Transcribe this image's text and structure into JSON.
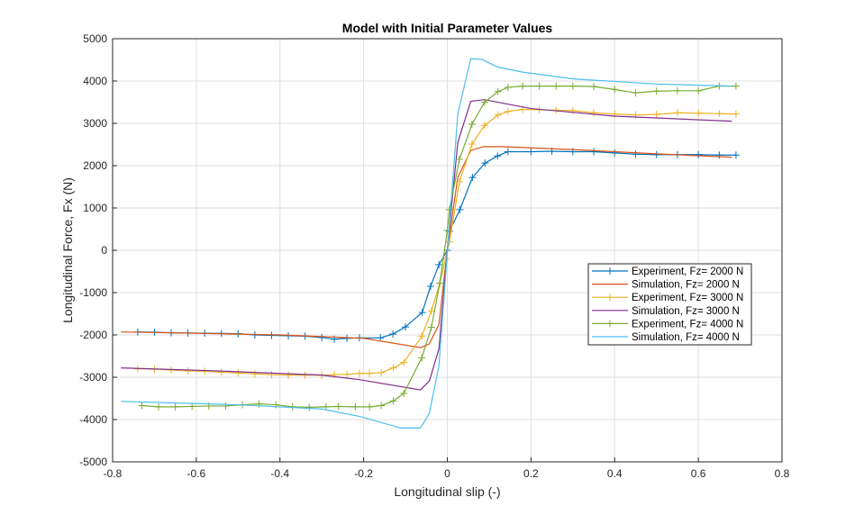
{
  "chart_data": {
    "type": "line",
    "title": "Model with Initial Parameter Values",
    "xlabel": "Longitudinal slip (-)",
    "ylabel": "Longitudinal Force, Fx (N)",
    "xlim": [
      -0.8,
      0.8
    ],
    "ylim": [
      -5000,
      5000
    ],
    "xticks": [
      -0.8,
      -0.6,
      -0.4,
      -0.2,
      0,
      0.2,
      0.4,
      0.6,
      0.8
    ],
    "xtick_labels": [
      "-0.8",
      "-0.6",
      "-0.4",
      "-0.2",
      "0",
      "0.2",
      "0.4",
      "0.6",
      "0.8"
    ],
    "yticks": [
      -5000,
      -4000,
      -3000,
      -2000,
      -1000,
      0,
      1000,
      2000,
      3000,
      4000,
      5000
    ],
    "ytick_labels": [
      "-5000",
      "-4000",
      "-3000",
      "-2000",
      "-1000",
      "0",
      "1000",
      "2000",
      "3000",
      "4000",
      "5000"
    ],
    "grid": true,
    "legend_position": "right-center",
    "series": [
      {
        "name": "Experiment, Fz= 2000 N",
        "color": "#0072BD",
        "marker": "+",
        "points": [
          [
            -0.74,
            -1930
          ],
          [
            -0.7,
            -1935
          ],
          [
            -0.66,
            -1950
          ],
          [
            -0.62,
            -1955
          ],
          [
            -0.58,
            -1960
          ],
          [
            -0.54,
            -1965
          ],
          [
            -0.5,
            -1970
          ],
          [
            -0.46,
            -2000
          ],
          [
            -0.42,
            -2010
          ],
          [
            -0.38,
            -2020
          ],
          [
            -0.34,
            -2030
          ],
          [
            -0.3,
            -2060
          ],
          [
            -0.27,
            -2100
          ],
          [
            -0.24,
            -2080
          ],
          [
            -0.21,
            -2070
          ],
          [
            -0.16,
            -2070
          ],
          [
            -0.13,
            -1980
          ],
          [
            -0.1,
            -1810
          ],
          [
            -0.06,
            -1470
          ],
          [
            -0.04,
            -850
          ],
          [
            -0.02,
            -340
          ],
          [
            0,
            0
          ],
          [
            0.005,
            450
          ],
          [
            0.03,
            960
          ],
          [
            0.06,
            1720
          ],
          [
            0.09,
            2060
          ],
          [
            0.12,
            2230
          ],
          [
            0.145,
            2330
          ],
          [
            0.2,
            2330
          ],
          [
            0.25,
            2340
          ],
          [
            0.3,
            2330
          ],
          [
            0.35,
            2330
          ],
          [
            0.4,
            2300
          ],
          [
            0.45,
            2270
          ],
          [
            0.5,
            2260
          ],
          [
            0.55,
            2260
          ],
          [
            0.6,
            2260
          ],
          [
            0.65,
            2250
          ],
          [
            0.69,
            2250
          ]
        ]
      },
      {
        "name": "Simulation, Fz= 2000 N",
        "color": "#D95319",
        "marker": "",
        "points": [
          [
            -0.78,
            -1930
          ],
          [
            -0.6,
            -1960
          ],
          [
            -0.4,
            -2000
          ],
          [
            -0.2,
            -2080
          ],
          [
            -0.064,
            -2300
          ],
          [
            -0.043,
            -2210
          ],
          [
            -0.02,
            -1750
          ],
          [
            0,
            0
          ],
          [
            0.025,
            1720
          ],
          [
            0.056,
            2360
          ],
          [
            0.087,
            2450
          ],
          [
            0.13,
            2450
          ],
          [
            0.3,
            2380
          ],
          [
            0.5,
            2280
          ],
          [
            0.68,
            2200
          ]
        ]
      },
      {
        "name": "Experiment, Fz= 3000 N",
        "color": "#EDB120",
        "marker": "+",
        "points": [
          [
            -0.74,
            -2800
          ],
          [
            -0.7,
            -2810
          ],
          [
            -0.66,
            -2830
          ],
          [
            -0.62,
            -2850
          ],
          [
            -0.58,
            -2860
          ],
          [
            -0.54,
            -2880
          ],
          [
            -0.5,
            -2900
          ],
          [
            -0.46,
            -2920
          ],
          [
            -0.42,
            -2940
          ],
          [
            -0.38,
            -2950
          ],
          [
            -0.34,
            -2950
          ],
          [
            -0.3,
            -2950
          ],
          [
            -0.27,
            -2940
          ],
          [
            -0.24,
            -2930
          ],
          [
            -0.21,
            -2910
          ],
          [
            -0.186,
            -2910
          ],
          [
            -0.158,
            -2890
          ],
          [
            -0.129,
            -2780
          ],
          [
            -0.104,
            -2650
          ],
          [
            -0.061,
            -2030
          ],
          [
            -0.038,
            -1430
          ],
          [
            -0.018,
            -780
          ],
          [
            -0.004,
            -200
          ],
          [
            0.005,
            200
          ],
          [
            0.029,
            1620
          ],
          [
            0.059,
            2510
          ],
          [
            0.089,
            2950
          ],
          [
            0.121,
            3200
          ],
          [
            0.145,
            3280
          ],
          [
            0.18,
            3330
          ],
          [
            0.22,
            3320
          ],
          [
            0.26,
            3310
          ],
          [
            0.3,
            3300
          ],
          [
            0.35,
            3250
          ],
          [
            0.4,
            3220
          ],
          [
            0.45,
            3200
          ],
          [
            0.5,
            3210
          ],
          [
            0.55,
            3250
          ],
          [
            0.6,
            3240
          ],
          [
            0.65,
            3230
          ],
          [
            0.69,
            3220
          ]
        ]
      },
      {
        "name": "Simulation, Fz= 3000 N",
        "color": "#7E2F8E",
        "marker": "",
        "points": [
          [
            -0.78,
            -2780
          ],
          [
            -0.55,
            -2850
          ],
          [
            -0.3,
            -2950
          ],
          [
            -0.208,
            -3060
          ],
          [
            -0.064,
            -3300
          ],
          [
            -0.043,
            -3090
          ],
          [
            -0.02,
            -2330
          ],
          [
            0,
            0
          ],
          [
            0.025,
            2550
          ],
          [
            0.056,
            3520
          ],
          [
            0.089,
            3560
          ],
          [
            0.2,
            3350
          ],
          [
            0.4,
            3170
          ],
          [
            0.68,
            3050
          ]
        ]
      },
      {
        "name": "Experiment, Fz= 4000 N",
        "color": "#77AC30",
        "marker": "+",
        "points": [
          [
            -0.73,
            -3670
          ],
          [
            -0.69,
            -3700
          ],
          [
            -0.65,
            -3700
          ],
          [
            -0.61,
            -3690
          ],
          [
            -0.57,
            -3680
          ],
          [
            -0.53,
            -3680
          ],
          [
            -0.49,
            -3650
          ],
          [
            -0.45,
            -3630
          ],
          [
            -0.41,
            -3650
          ],
          [
            -0.37,
            -3700
          ],
          [
            -0.33,
            -3710
          ],
          [
            -0.29,
            -3700
          ],
          [
            -0.26,
            -3690
          ],
          [
            -0.22,
            -3700
          ],
          [
            -0.186,
            -3700
          ],
          [
            -0.158,
            -3670
          ],
          [
            -0.129,
            -3560
          ],
          [
            -0.104,
            -3380
          ],
          [
            -0.061,
            -2540
          ],
          [
            -0.038,
            -1820
          ],
          [
            -0.018,
            -780
          ],
          [
            0,
            470
          ],
          [
            0.005,
            960
          ],
          [
            0.029,
            2150
          ],
          [
            0.059,
            2980
          ],
          [
            0.089,
            3500
          ],
          [
            0.121,
            3750
          ],
          [
            0.145,
            3850
          ],
          [
            0.18,
            3880
          ],
          [
            0.22,
            3880
          ],
          [
            0.26,
            3880
          ],
          [
            0.3,
            3880
          ],
          [
            0.35,
            3870
          ],
          [
            0.4,
            3800
          ],
          [
            0.45,
            3720
          ],
          [
            0.5,
            3760
          ],
          [
            0.55,
            3770
          ],
          [
            0.6,
            3770
          ],
          [
            0.65,
            3880
          ],
          [
            0.69,
            3880
          ]
        ]
      },
      {
        "name": "Simulation, Fz= 4000 N",
        "color": "#4DBEEE",
        "marker": "",
        "points": [
          [
            -0.78,
            -3570
          ],
          [
            -0.5,
            -3650
          ],
          [
            -0.3,
            -3750
          ],
          [
            -0.208,
            -3930
          ],
          [
            -0.111,
            -4200
          ],
          [
            -0.064,
            -4200
          ],
          [
            -0.043,
            -3850
          ],
          [
            -0.02,
            -2730
          ],
          [
            0,
            -60
          ],
          [
            0.025,
            3220
          ],
          [
            0.056,
            4530
          ],
          [
            0.083,
            4510
          ],
          [
            0.12,
            4330
          ],
          [
            0.18,
            4210
          ],
          [
            0.3,
            4050
          ],
          [
            0.5,
            3930
          ],
          [
            0.68,
            3880
          ]
        ]
      }
    ]
  }
}
